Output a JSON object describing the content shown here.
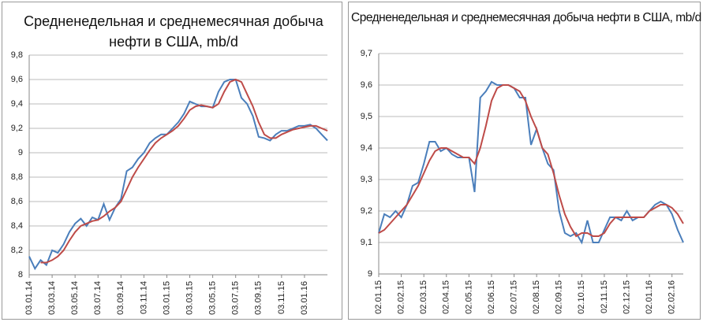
{
  "chart_data": [
    {
      "type": "line",
      "title": "Средненедельная и среднемесячная добыча нефти в США, mb/d",
      "categories": [
        "03.01.14",
        null,
        null,
        null,
        "03.03.14",
        null,
        null,
        null,
        "03.05.14",
        null,
        null,
        null,
        "03.07.14",
        null,
        null,
        null,
        "03.09.14",
        null,
        null,
        null,
        "03.11.14",
        null,
        null,
        null,
        "03.01.15",
        null,
        null,
        null,
        "03.03.15",
        null,
        null,
        null,
        "03.05.15",
        null,
        null,
        null,
        "03.07.15",
        null,
        null,
        null,
        "03.09.15",
        null,
        null,
        null,
        "03.11.15",
        null,
        null,
        null,
        "03.01.16",
        null,
        null,
        null,
        null
      ],
      "series": [
        {
          "color": "#4a7ebb",
          "values": [
            8.15,
            8.05,
            8.12,
            8.08,
            8.2,
            8.18,
            8.25,
            8.35,
            8.42,
            8.46,
            8.4,
            8.47,
            8.45,
            8.58,
            8.45,
            8.55,
            8.62,
            8.85,
            8.88,
            8.95,
            9.0,
            9.08,
            9.12,
            9.15,
            9.15,
            9.2,
            9.25,
            9.32,
            9.42,
            9.4,
            9.38,
            9.38,
            9.37,
            9.5,
            9.58,
            9.6,
            9.6,
            9.45,
            9.4,
            9.3,
            9.13,
            9.12,
            9.1,
            9.15,
            9.18,
            9.18,
            9.2,
            9.22,
            9.22,
            9.23,
            9.2,
            9.15,
            9.1
          ]
        },
        {
          "color": "#be4b48",
          "values": [
            null,
            null,
            8.1,
            8.1,
            8.12,
            8.15,
            8.2,
            8.28,
            8.35,
            8.4,
            8.42,
            8.44,
            8.45,
            8.48,
            8.52,
            8.55,
            8.6,
            8.7,
            8.8,
            8.88,
            8.95,
            9.02,
            9.08,
            9.12,
            9.15,
            9.18,
            9.22,
            9.28,
            9.35,
            9.38,
            9.39,
            9.38,
            9.37,
            9.4,
            9.5,
            9.58,
            9.6,
            9.58,
            9.48,
            9.38,
            9.25,
            9.15,
            9.12,
            9.12,
            9.15,
            9.17,
            9.19,
            9.2,
            9.21,
            9.22,
            9.22,
            9.2,
            9.18
          ]
        }
      ],
      "ylim": [
        8,
        9.8
      ],
      "yticks": [
        8,
        {
          "value": 8.2,
          "label": "8,2"
        },
        {
          "value": 8.4,
          "label": "8,4"
        },
        {
          "value": 8.6,
          "label": "8,6"
        },
        {
          "value": 8.8,
          "label": "8,8"
        },
        9,
        {
          "value": 9.2,
          "label": "9,2"
        },
        {
          "value": 9.4,
          "label": "9,4"
        },
        {
          "value": 9.6,
          "label": "9,6"
        },
        {
          "value": 9.8,
          "label": "9,8"
        }
      ],
      "grid": true
    },
    {
      "type": "line",
      "title": "Средненедельная и среднемесячная добыча нефти в США, mb/d",
      "categories": [
        "02.01.15",
        null,
        null,
        null,
        "02.02.15",
        null,
        null,
        null,
        "02.03.15",
        null,
        null,
        null,
        "02.04.15",
        null,
        null,
        null,
        "02.05.15",
        null,
        null,
        null,
        "02.06.15",
        null,
        null,
        null,
        "02.07.15",
        null,
        null,
        null,
        "02.08.15",
        null,
        null,
        null,
        "02.09.15",
        null,
        null,
        null,
        "02.10.15",
        null,
        null,
        null,
        "02.11.15",
        null,
        null,
        null,
        "02.12.15",
        null,
        null,
        null,
        "02.01.16",
        null,
        null,
        null,
        "02.02.16",
        null,
        null
      ],
      "series": [
        {
          "color": "#4a7ebb",
          "values": [
            9.13,
            9.19,
            9.18,
            9.2,
            9.18,
            9.22,
            9.28,
            9.29,
            9.35,
            9.42,
            9.42,
            9.39,
            9.4,
            9.38,
            9.37,
            9.37,
            9.37,
            9.26,
            9.56,
            9.58,
            9.61,
            9.6,
            9.6,
            9.6,
            9.59,
            9.56,
            9.56,
            9.41,
            9.46,
            9.4,
            9.35,
            9.33,
            9.2,
            9.13,
            9.12,
            9.13,
            9.1,
            9.17,
            9.1,
            9.1,
            9.14,
            9.18,
            9.18,
            9.17,
            9.2,
            9.17,
            9.18,
            9.18,
            9.2,
            9.22,
            9.23,
            9.22,
            9.19,
            9.14,
            9.1
          ]
        },
        {
          "color": "#be4b48",
          "values": [
            9.13,
            9.14,
            9.16,
            9.18,
            9.2,
            9.22,
            9.25,
            9.28,
            9.32,
            9.36,
            9.39,
            9.4,
            9.4,
            9.39,
            9.38,
            9.37,
            9.37,
            9.35,
            9.4,
            9.47,
            9.55,
            9.59,
            9.6,
            9.6,
            9.59,
            9.58,
            9.55,
            9.5,
            9.46,
            9.4,
            9.38,
            9.32,
            9.25,
            9.19,
            9.15,
            9.12,
            9.13,
            9.13,
            9.12,
            9.12,
            9.13,
            9.16,
            9.18,
            9.18,
            9.18,
            9.18,
            9.18,
            9.18,
            9.2,
            9.21,
            9.22,
            9.22,
            9.21,
            9.19,
            9.16
          ]
        }
      ],
      "ylim": [
        9,
        9.7
      ],
      "yticks": [
        9,
        {
          "value": 9.1,
          "label": "9,1"
        },
        {
          "value": 9.2,
          "label": "9,2"
        },
        {
          "value": 9.3,
          "label": "9,3"
        },
        {
          "value": 9.4,
          "label": "9,4"
        },
        {
          "value": 9.5,
          "label": "9,5"
        },
        {
          "value": 9.6,
          "label": "9,6"
        },
        {
          "value": 9.7,
          "label": "9,7"
        }
      ],
      "grid": true
    }
  ]
}
